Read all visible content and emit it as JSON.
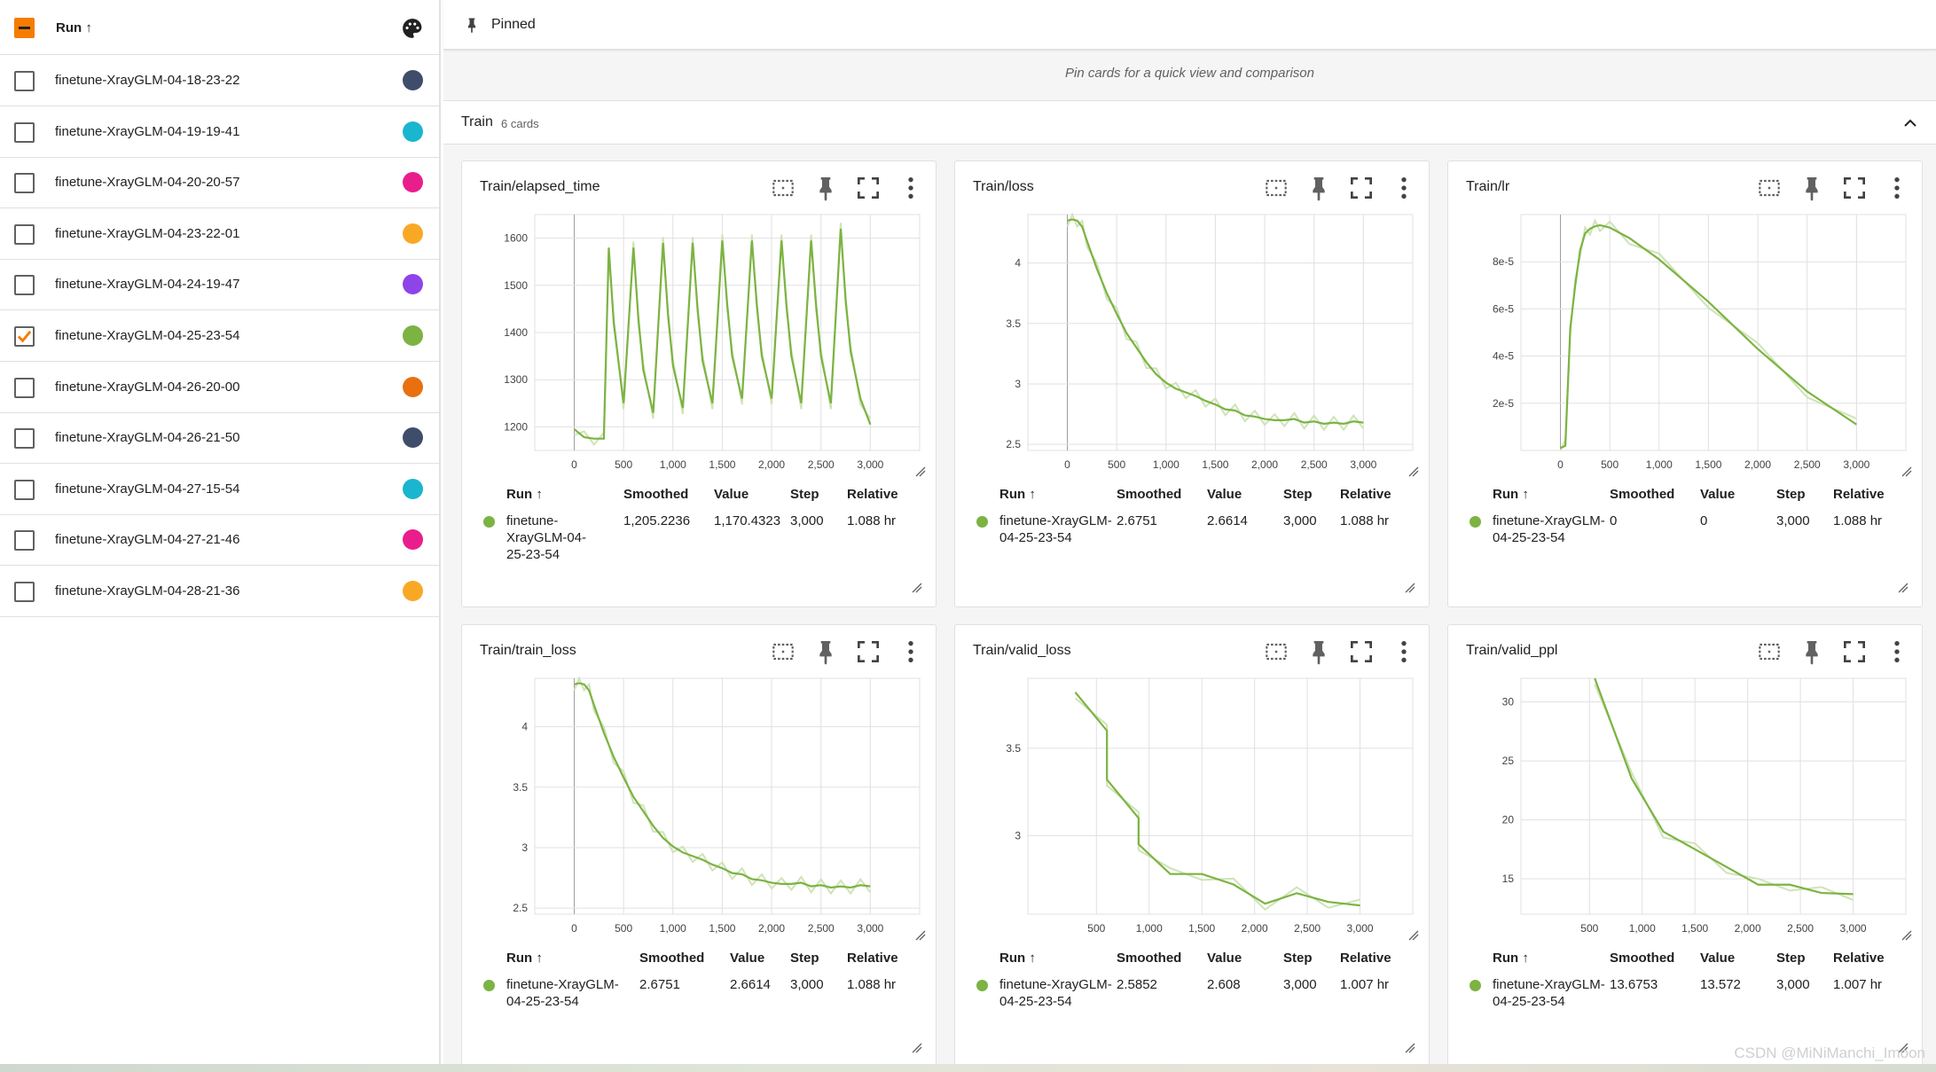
{
  "sidebar": {
    "header_label": "Run ↑",
    "runs": [
      {
        "name": "finetune-XrayGLM-04-18-23-22",
        "color": "#3f4d6b",
        "checked": false
      },
      {
        "name": "finetune-XrayGLM-04-19-19-41",
        "color": "#1ab5cf",
        "checked": false
      },
      {
        "name": "finetune-XrayGLM-04-20-20-57",
        "color": "#e91e8c",
        "checked": false
      },
      {
        "name": "finetune-XrayGLM-04-23-22-01",
        "color": "#f9a825",
        "checked": false
      },
      {
        "name": "finetune-XrayGLM-04-24-19-47",
        "color": "#8e44e8",
        "checked": false
      },
      {
        "name": "finetune-XrayGLM-04-25-23-54",
        "color": "#7cb342",
        "checked": true
      },
      {
        "name": "finetune-XrayGLM-04-26-20-00",
        "color": "#e8700f",
        "checked": false
      },
      {
        "name": "finetune-XrayGLM-04-26-21-50",
        "color": "#3f4d6b",
        "checked": false
      },
      {
        "name": "finetune-XrayGLM-04-27-15-54",
        "color": "#1ab5cf",
        "checked": false
      },
      {
        "name": "finetune-XrayGLM-04-27-21-46",
        "color": "#e91e8c",
        "checked": false
      },
      {
        "name": "finetune-XrayGLM-04-28-21-36",
        "color": "#f9a825",
        "checked": false
      }
    ]
  },
  "pinned": {
    "label": "Pinned",
    "empty_text": "Pin cards for a quick view and comparison"
  },
  "group": {
    "title": "Train",
    "count": "6 cards"
  },
  "table_headers": {
    "run": "Run ↑",
    "smoothed": "Smoothed",
    "value": "Value",
    "step": "Step",
    "relative": "Relative"
  },
  "cards": [
    {
      "title": "Train/elapsed_time",
      "run": "finetune-XrayGLM-04-25-23-54",
      "smoothed": "1,205.2236",
      "value": "1,170.4323",
      "step": "3,000",
      "relative": "1.088 hr",
      "y_ticks": [
        "1600",
        "1500",
        "1400",
        "1300",
        "1200"
      ],
      "x_ticks": [
        "0",
        "500",
        "1,000",
        "1,500",
        "2,000",
        "2,500",
        "3,000"
      ]
    },
    {
      "title": "Train/loss",
      "run": "finetune-XrayGLM-04-25-23-54",
      "smoothed": "2.6751",
      "value": "2.6614",
      "step": "3,000",
      "relative": "1.088 hr",
      "y_ticks": [
        "4",
        "3.5",
        "3",
        "2.5"
      ],
      "x_ticks": [
        "0",
        "500",
        "1,000",
        "1,500",
        "2,000",
        "2,500",
        "3,000"
      ]
    },
    {
      "title": "Train/lr",
      "run": "finetune-XrayGLM-04-25-23-54",
      "smoothed": "0",
      "value": "0",
      "step": "3,000",
      "relative": "1.088 hr",
      "y_ticks": [
        "8e-5",
        "6e-5",
        "4e-5",
        "2e-5"
      ],
      "x_ticks": [
        "0",
        "500",
        "1,000",
        "1,500",
        "2,000",
        "2,500",
        "3,000"
      ]
    },
    {
      "title": "Train/train_loss",
      "run": "finetune-XrayGLM-04-25-23-54",
      "smoothed": "2.6751",
      "value": "2.6614",
      "step": "3,000",
      "relative": "1.088 hr",
      "y_ticks": [
        "4",
        "3.5",
        "3",
        "2.5"
      ],
      "x_ticks": [
        "0",
        "500",
        "1,000",
        "1,500",
        "2,000",
        "2,500",
        "3,000"
      ]
    },
    {
      "title": "Train/valid_loss",
      "run": "finetune-XrayGLM-04-25-23-54",
      "smoothed": "2.5852",
      "value": "2.608",
      "step": "3,000",
      "relative": "1.007 hr",
      "y_ticks": [
        "3.5",
        "3"
      ],
      "x_ticks": [
        "500",
        "1,000",
        "1,500",
        "2,000",
        "2,500",
        "3,000"
      ]
    },
    {
      "title": "Train/valid_ppl",
      "run": "finetune-XrayGLM-04-25-23-54",
      "smoothed": "13.6753",
      "value": "13.572",
      "step": "3,000",
      "relative": "1.007 hr",
      "y_ticks": [
        "30",
        "25",
        "20",
        "15"
      ],
      "x_ticks": [
        "500",
        "1,000",
        "1,500",
        "2,000",
        "2,500",
        "3,000"
      ]
    }
  ],
  "watermark": "CSDN @MiNiManchi_Imoon",
  "colors": {
    "accent": "#f57c00",
    "series": "#7cb342",
    "series_light": "#cfe3b8"
  },
  "chart_data": [
    {
      "type": "line",
      "title": "Train/elapsed_time",
      "ylim": [
        1150,
        1650
      ],
      "xlim": [
        -400,
        3500
      ],
      "x": [
        0,
        100,
        200,
        300,
        350,
        400,
        500,
        600,
        650,
        700,
        800,
        900,
        950,
        1000,
        1100,
        1200,
        1250,
        1300,
        1400,
        1500,
        1550,
        1600,
        1700,
        1800,
        1850,
        1900,
        2000,
        2100,
        2150,
        2200,
        2300,
        2400,
        2450,
        2500,
        2600,
        2700,
        2750,
        2800,
        2900,
        3000
      ],
      "series": [
        {
          "values": [
            1195,
            1178,
            1175,
            1175,
            1580,
            1420,
            1250,
            1580,
            1430,
            1320,
            1230,
            1590,
            1440,
            1330,
            1240,
            1590,
            1450,
            1340,
            1250,
            1595,
            1460,
            1350,
            1260,
            1595,
            1460,
            1350,
            1260,
            1595,
            1460,
            1350,
            1250,
            1595,
            1460,
            1350,
            1250,
            1620,
            1470,
            1360,
            1260,
            1205
          ]
        }
      ]
    },
    {
      "type": "line",
      "title": "Train/loss",
      "ylim": [
        2.45,
        4.4
      ],
      "xlim": [
        -400,
        3500
      ],
      "x": [
        0,
        50,
        100,
        150,
        200,
        300,
        400,
        500,
        600,
        700,
        800,
        900,
        1000,
        1100,
        1200,
        1300,
        1400,
        1500,
        1600,
        1700,
        1800,
        1900,
        2000,
        2100,
        2200,
        2300,
        2400,
        2500,
        2600,
        2700,
        2800,
        2900,
        3000
      ],
      "series": [
        {
          "values": [
            4.35,
            4.36,
            4.35,
            4.3,
            4.18,
            3.95,
            3.75,
            3.58,
            3.42,
            3.3,
            3.18,
            3.08,
            3.01,
            2.96,
            2.93,
            2.9,
            2.86,
            2.83,
            2.79,
            2.78,
            2.74,
            2.73,
            2.71,
            2.7,
            2.7,
            2.71,
            2.68,
            2.69,
            2.67,
            2.68,
            2.67,
            2.69,
            2.68
          ]
        }
      ]
    },
    {
      "type": "line",
      "title": "Train/lr",
      "ylim": [
        0,
        0.0001
      ],
      "xlim": [
        -400,
        3500
      ],
      "x": [
        0,
        50,
        100,
        150,
        200,
        250,
        300,
        350,
        400,
        500,
        700,
        1000,
        1500,
        2000,
        2500,
        3000
      ],
      "series": [
        {
          "values": [
            1e-06,
            2e-06,
            5.2e-05,
            7e-05,
            8.5e-05,
            9.2e-05,
            9.4e-05,
            9.5e-05,
            9.55e-05,
            9.45e-05,
            9e-05,
            8.1e-05,
            6.3e-05,
            4.3e-05,
            2.5e-05,
            1.1e-05
          ]
        }
      ]
    },
    {
      "type": "line",
      "title": "Train/train_loss",
      "ylim": [
        2.45,
        4.4
      ],
      "xlim": [
        -400,
        3500
      ],
      "x": [
        0,
        50,
        100,
        150,
        200,
        300,
        400,
        500,
        600,
        700,
        800,
        900,
        1000,
        1100,
        1200,
        1300,
        1400,
        1500,
        1600,
        1700,
        1800,
        1900,
        2000,
        2100,
        2200,
        2300,
        2400,
        2500,
        2600,
        2700,
        2800,
        2900,
        3000
      ],
      "series": [
        {
          "values": [
            4.35,
            4.36,
            4.35,
            4.3,
            4.18,
            3.95,
            3.75,
            3.58,
            3.42,
            3.3,
            3.18,
            3.08,
            3.01,
            2.96,
            2.93,
            2.9,
            2.86,
            2.83,
            2.79,
            2.78,
            2.74,
            2.73,
            2.71,
            2.7,
            2.7,
            2.71,
            2.68,
            2.69,
            2.67,
            2.68,
            2.67,
            2.69,
            2.68
          ]
        }
      ]
    },
    {
      "type": "line",
      "title": "Train/valid_loss",
      "ylim": [
        2.55,
        3.9
      ],
      "xlim": [
        -150,
        3500
      ],
      "x": [
        300,
        600,
        600,
        900,
        900,
        1200,
        1500,
        1800,
        2100,
        2400,
        2700,
        3000
      ],
      "series": [
        {
          "values": [
            3.82,
            3.6,
            3.32,
            3.1,
            2.95,
            2.78,
            2.78,
            2.72,
            2.61,
            2.67,
            2.62,
            2.6
          ]
        }
      ]
    },
    {
      "type": "line",
      "title": "Train/valid_ppl",
      "ylim": [
        12,
        32
      ],
      "xlim": [
        -150,
        3500
      ],
      "x": [
        550,
        900,
        1200,
        1500,
        1800,
        2100,
        2400,
        2700,
        3000
      ],
      "series": [
        {
          "values": [
            32,
            23.5,
            19,
            17.5,
            16,
            14.5,
            14.5,
            13.8,
            13.7
          ]
        }
      ]
    }
  ]
}
